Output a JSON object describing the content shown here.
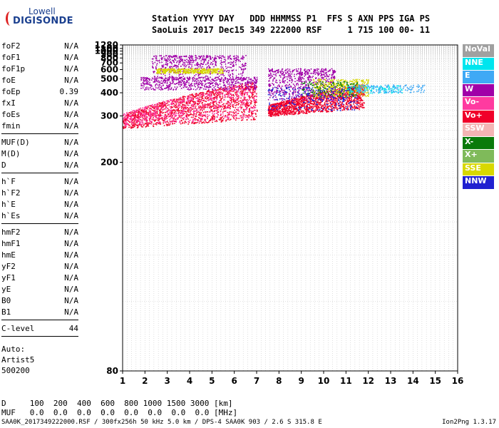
{
  "logo": {
    "line1": "Lowell",
    "line2": "DIGISONDE"
  },
  "header": {
    "line1": "Station YYYY DAY   DDD HHMMSS P1  FFS S AXN PPS IGA PS",
    "line2": "SaoLuis 2017 Dec15 349 222000 RSF     1 715 100 00- 11"
  },
  "params": {
    "group1": [
      {
        "name": "foF2",
        "value": "N/A"
      },
      {
        "name": "foF1",
        "value": "N/A"
      },
      {
        "name": "foF1p",
        "value": "N/A"
      },
      {
        "name": "foE",
        "value": "N/A"
      },
      {
        "name": "foEp",
        "value": "0.39"
      },
      {
        "name": "fxI",
        "value": "N/A"
      },
      {
        "name": "foEs",
        "value": "N/A"
      },
      {
        "name": "fmin",
        "value": "N/A"
      }
    ],
    "group2": [
      {
        "name": "MUF(D)",
        "value": "N/A"
      },
      {
        "name": "M(D)",
        "value": "N/A"
      },
      {
        "name": "D",
        "value": "N/A"
      }
    ],
    "group3": [
      {
        "name": "h`F",
        "value": "N/A"
      },
      {
        "name": "h`F2",
        "value": "N/A"
      },
      {
        "name": "h`E",
        "value": "N/A"
      },
      {
        "name": "h`Es",
        "value": "N/A"
      }
    ],
    "group4": [
      {
        "name": "hmF2",
        "value": "N/A"
      },
      {
        "name": "hmF1",
        "value": "N/A"
      },
      {
        "name": "hmE",
        "value": "N/A"
      },
      {
        "name": "yF2",
        "value": "N/A"
      },
      {
        "name": "yF1",
        "value": "N/A"
      },
      {
        "name": "yE",
        "value": "N/A"
      },
      {
        "name": "B0",
        "value": "N/A"
      },
      {
        "name": "B1",
        "value": "N/A"
      }
    ],
    "group5": [
      {
        "name": "C-level",
        "value": "44"
      }
    ]
  },
  "auto": {
    "label": "Auto:",
    "artist": "Artist5",
    "version": "500200"
  },
  "legend": [
    {
      "label": "NoVal",
      "color": "#a0a0a0"
    },
    {
      "label": "NNE",
      "color": "#00e5ee"
    },
    {
      "label": "E",
      "color": "#3fa9f5"
    },
    {
      "label": "W",
      "color": "#a000a8"
    },
    {
      "label": "Vo-",
      "color": "#ff3aa0"
    },
    {
      "label": "Vo+",
      "color": "#f0002a"
    },
    {
      "label": "SSW",
      "color": "#f4b4b4"
    },
    {
      "label": "X-",
      "color": "#0a7a0a"
    },
    {
      "label": "X+",
      "color": "#7fba5a"
    },
    {
      "label": "SSE",
      "color": "#d8d800"
    },
    {
      "label": "NNW",
      "color": "#2020d0"
    }
  ],
  "bottom": {
    "d_row": "D     100  200  400  600  800 1000 1500 3000 [km]",
    "muf_row": "MUF   0.0  0.0  0.0  0.0  0.0  0.0  0.0  0.0 [MHz]"
  },
  "footer": {
    "left": "SAA0K_2017349222000.RSF / 300fx256h 50 kHz 5.0 km / DPS-4 SAA0K 903 / 2.6 S 315.8 E",
    "right": "Ion2Png 1.3.17"
  },
  "chart_data": {
    "type": "scatter",
    "title": "",
    "xlabel": "",
    "ylabel": "",
    "xlim": [
      1,
      16
    ],
    "ylim": [
      80,
      1280
    ],
    "x_ticks": [
      1,
      2,
      3,
      4,
      5,
      6,
      7,
      8,
      9,
      10,
      11,
      12,
      13,
      14,
      15,
      16
    ],
    "y_ticks": [
      80,
      200,
      300,
      400,
      500,
      600,
      700,
      800,
      900,
      1000,
      1100,
      1280
    ],
    "y_scale": "reciprocal",
    "grid": true,
    "traces": [
      {
        "name": "Vo+",
        "color": "#f0002a",
        "x": [
          1.0,
          7.0
        ],
        "y": [
          265,
          440
        ]
      },
      {
        "name": "Vo+",
        "color": "#f0002a",
        "x": [
          7.5,
          11.8
        ],
        "y": [
          300,
          420
        ]
      },
      {
        "name": "Vo-",
        "color": "#ff3aa0",
        "x": [
          1.0,
          7.0
        ],
        "y": [
          270,
          430
        ]
      },
      {
        "name": "W",
        "color": "#a000a8",
        "x": [
          1.8,
          7.0
        ],
        "y": [
          420,
          520
        ]
      },
      {
        "name": "W",
        "color": "#a000a8",
        "x": [
          7.5,
          10.5
        ],
        "y": [
          360,
          620
        ]
      },
      {
        "name": "W",
        "color": "#a000a8",
        "x": [
          2.3,
          6.5
        ],
        "y": [
          500,
          880
        ]
      },
      {
        "name": "SSE",
        "color": "#d8d800",
        "x": [
          2.5,
          5.5
        ],
        "y": [
          560,
          620
        ]
      },
      {
        "name": "SSE",
        "color": "#d8d800",
        "x": [
          9.5,
          12.0
        ],
        "y": [
          380,
          500
        ]
      },
      {
        "name": "X-",
        "color": "#0a7a0a",
        "x": [
          9.0,
          11.5
        ],
        "y": [
          380,
          480
        ]
      },
      {
        "name": "NNW",
        "color": "#2020d0",
        "x": [
          7.5,
          11.5
        ],
        "y": [
          320,
          440
        ]
      },
      {
        "name": "NNE",
        "color": "#00e5ee",
        "x": [
          11.0,
          13.5
        ],
        "y": [
          400,
          450
        ]
      },
      {
        "name": "E",
        "color": "#3fa9f5",
        "x": [
          11.5,
          14.5
        ],
        "y": [
          400,
          455
        ]
      }
    ]
  }
}
